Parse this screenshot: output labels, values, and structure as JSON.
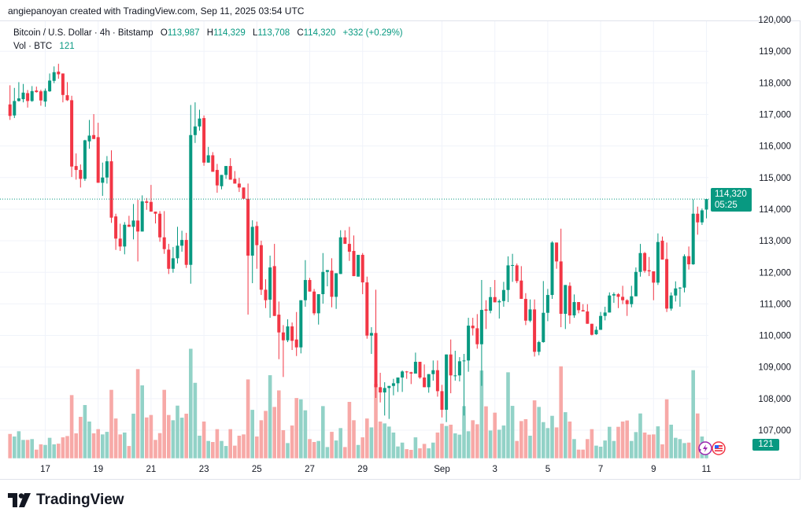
{
  "credit": "angiepanoyan created with TradingView.com, Sep 11, 2025 03:54 UTC",
  "legend": {
    "symbol": "Bitcoin / U.S. Dollar · 4h · Bitstamp",
    "o_label": "O",
    "o": "113,987",
    "h_label": "H",
    "h": "114,329",
    "l_label": "L",
    "l": "113,708",
    "c_label": "C",
    "c": "114,320",
    "change": "+332 (+0.29%)",
    "vol_label": "Vol · BTC",
    "vol": "121"
  },
  "price_badge": {
    "price": "114,320",
    "countdown": "05:25"
  },
  "volume_badge": "121",
  "logo_text": "TradingView",
  "colors": {
    "up": "#089981",
    "down": "#f23645",
    "vol_up": "#92d2c7",
    "vol_down": "#f7a9a7",
    "grid": "#f0f3fa"
  },
  "chart_data": {
    "type": "candlestick",
    "title": "Bitcoin / U.S. Dollar · 4h · Bitstamp",
    "interval": "4h",
    "ylim": [
      106500,
      120000
    ],
    "y_ticks": [
      "120,000",
      "119,000",
      "118,000",
      "117,000",
      "116,000",
      "115,000",
      "114,000",
      "113,000",
      "112,000",
      "111,000",
      "110,000",
      "109,000",
      "108,000",
      "107,000"
    ],
    "y_tick_values": [
      120000,
      119000,
      118000,
      117000,
      116000,
      115000,
      114000,
      113000,
      112000,
      111000,
      110000,
      109000,
      108000,
      107000
    ],
    "x_ticks": [
      {
        "label": "17",
        "index": 8
      },
      {
        "label": "19",
        "index": 20
      },
      {
        "label": "21",
        "index": 32
      },
      {
        "label": "23",
        "index": 44
      },
      {
        "label": "25",
        "index": 56
      },
      {
        "label": "27",
        "index": 68
      },
      {
        "label": "29",
        "index": 80
      },
      {
        "label": "Sep",
        "index": 98
      },
      {
        "label": "3",
        "index": 110
      },
      {
        "label": "5",
        "index": 122
      },
      {
        "label": "7",
        "index": 134
      },
      {
        "label": "9",
        "index": 146
      },
      {
        "label": "11",
        "index": 158
      }
    ],
    "last_price": 114320,
    "ohlc": [
      [
        117317,
        117923,
        116827,
        116952
      ],
      [
        116968,
        117840,
        116886,
        117425
      ],
      [
        117425,
        118023,
        117408,
        117508
      ],
      [
        117483,
        117965,
        117383,
        117691
      ],
      [
        117674,
        117774,
        117217,
        117425
      ],
      [
        117425,
        117898,
        117400,
        117740
      ],
      [
        117757,
        117881,
        117690,
        117707
      ],
      [
        117732,
        117782,
        117276,
        117442
      ],
      [
        117408,
        117823,
        117242,
        117749
      ],
      [
        117732,
        118297,
        117715,
        118072
      ],
      [
        118064,
        118521,
        117989,
        118338
      ],
      [
        118354,
        118604,
        118130,
        118272
      ],
      [
        118297,
        118297,
        117383,
        117616
      ],
      [
        117608,
        118023,
        117425,
        117450
      ],
      [
        117450,
        117591,
        115018,
        115350
      ],
      [
        115366,
        115765,
        114935,
        115242
      ],
      [
        115242,
        115416,
        114686,
        114960
      ],
      [
        114960,
        116197,
        114894,
        116180
      ],
      [
        116147,
        116827,
        115914,
        116330
      ],
      [
        116346,
        117010,
        116222,
        116222
      ],
      [
        116280,
        116736,
        114836,
        114836
      ],
      [
        114836,
        115475,
        114420,
        115002
      ],
      [
        115002,
        115682,
        114810,
        115516
      ],
      [
        115516,
        115865,
        113566,
        113731
      ],
      [
        113770,
        113856,
        112710,
        113068
      ],
      [
        113068,
        113540,
        112677,
        112818
      ],
      [
        112818,
        113590,
        112570,
        113507
      ],
      [
        113507,
        113790,
        113441,
        113441
      ],
      [
        113441,
        114163,
        113043,
        113640
      ],
      [
        113640,
        114296,
        112345,
        113292
      ],
      [
        113292,
        114437,
        113292,
        114246
      ],
      [
        114246,
        114353,
        113980,
        114200
      ],
      [
        114230,
        114768,
        113922,
        113922
      ],
      [
        113922,
        113922,
        113548,
        113856
      ],
      [
        113856,
        113938,
        112967,
        113108
      ],
      [
        113108,
        113938,
        112586,
        112735
      ],
      [
        112718,
        112901,
        111946,
        112112
      ],
      [
        112112,
        112801,
        111988,
        112445
      ],
      [
        112445,
        113440,
        112279,
        112843
      ],
      [
        112843,
        113316,
        112652,
        113025
      ],
      [
        113025,
        113250,
        112138,
        112237
      ],
      [
        112237,
        117300,
        111639,
        116346
      ],
      [
        116346,
        117383,
        116096,
        116620
      ],
      [
        116620,
        117150,
        116487,
        116869
      ],
      [
        116885,
        116968,
        115374,
        115474
      ],
      [
        115474,
        115972,
        115474,
        115706
      ],
      [
        115706,
        115806,
        115184,
        115184
      ],
      [
        115242,
        115433,
        114520,
        114752
      ],
      [
        114727,
        115084,
        114627,
        115084
      ],
      [
        115084,
        115366,
        114959,
        115366
      ],
      [
        115366,
        115615,
        114934,
        114934
      ],
      [
        114959,
        115208,
        114810,
        114810
      ],
      [
        114810,
        114993,
        114544,
        114686
      ],
      [
        114686,
        114686,
        114329,
        114329
      ],
      [
        114329,
        114810,
        110660,
        112528
      ],
      [
        112528,
        113648,
        111656,
        113440
      ],
      [
        113466,
        113607,
        112112,
        112860
      ],
      [
        112860,
        113001,
        111283,
        111449
      ],
      [
        111449,
        111780,
        110868,
        111116
      ],
      [
        111133,
        112528,
        110560,
        112154
      ],
      [
        112196,
        112901,
        110618,
        110618
      ],
      [
        110660,
        111075,
        109249,
        110096
      ],
      [
        110096,
        110328,
        108685,
        109847
      ],
      [
        109847,
        110511,
        109789,
        110287
      ],
      [
        110287,
        110411,
        109540,
        109830
      ],
      [
        109872,
        110743,
        109349,
        109623
      ],
      [
        109623,
        111116,
        109432,
        111116
      ],
      [
        111116,
        112386,
        110909,
        111756
      ],
      [
        111756,
        111822,
        111391,
        111391
      ],
      [
        111391,
        111473,
        110643,
        110702
      ],
      [
        110702,
        111308,
        110345,
        111308
      ],
      [
        111308,
        112610,
        111008,
        112013
      ],
      [
        112013,
        112071,
        111556,
        112071
      ],
      [
        112054,
        112444,
        110892,
        111224
      ],
      [
        111224,
        111971,
        110842,
        111971
      ],
      [
        111947,
        113332,
        111947,
        113108
      ],
      [
        113108,
        113332,
        112901,
        112901
      ],
      [
        112901,
        113440,
        112361,
        112652
      ],
      [
        112677,
        113167,
        111880,
        111880
      ],
      [
        111864,
        112553,
        111864,
        112553
      ],
      [
        112553,
        112610,
        111308,
        111681
      ],
      [
        111681,
        111864,
        109897,
        109996
      ],
      [
        109996,
        110262,
        109415,
        110079
      ],
      [
        110079,
        111449,
        108021,
        108361
      ],
      [
        108361,
        108818,
        107880,
        108196
      ],
      [
        108196,
        108519,
        107465,
        108336
      ],
      [
        108336,
        108402,
        107357,
        108402
      ],
      [
        108402,
        108627,
        108104,
        108486
      ],
      [
        108486,
        108668,
        108212,
        108668
      ],
      [
        108668,
        108893,
        108212,
        108859
      ],
      [
        108859,
        108875,
        108627,
        108835
      ],
      [
        108835,
        108850,
        108461,
        108793
      ],
      [
        108793,
        109457,
        108793,
        109166
      ],
      [
        109166,
        109166,
        108627,
        108668
      ],
      [
        108668,
        109083,
        108361,
        108361
      ],
      [
        108361,
        108776,
        108187,
        108776
      ],
      [
        108776,
        109208,
        108569,
        108900
      ],
      [
        108900,
        109208,
        108062,
        108236
      ],
      [
        108236,
        108436,
        107406,
        107647
      ],
      [
        107647,
        109398,
        107257,
        109398
      ],
      [
        109398,
        109872,
        108170,
        108735
      ],
      [
        108735,
        109515,
        108569,
        108735
      ],
      [
        108735,
        109315,
        108545,
        109183
      ],
      [
        109183,
        109415,
        107465,
        109208
      ],
      [
        109208,
        110560,
        108851,
        110311
      ],
      [
        110311,
        110560,
        110000,
        110228
      ],
      [
        110228,
        110677,
        109581,
        109722
      ],
      [
        109722,
        111756,
        108403,
        110809
      ],
      [
        110825,
        111116,
        110204,
        110784
      ],
      [
        110784,
        111532,
        110702,
        111216
      ],
      [
        111216,
        111756,
        111050,
        111050
      ],
      [
        111050,
        111141,
        110536,
        111091
      ],
      [
        111091,
        111698,
        110909,
        111440
      ],
      [
        111440,
        112503,
        111058,
        112220
      ],
      [
        112220,
        112586,
        111698,
        112230
      ],
      [
        112220,
        112278,
        111656,
        111722
      ],
      [
        111739,
        112196,
        111158,
        111158
      ],
      [
        111158,
        111340,
        110328,
        110469
      ],
      [
        110469,
        111141,
        110420,
        110826
      ],
      [
        110826,
        111141,
        109332,
        109482
      ],
      [
        109482,
        109830,
        109374,
        109789
      ],
      [
        109789,
        111723,
        109772,
        110718
      ],
      [
        110718,
        111474,
        110453,
        111282
      ],
      [
        111282,
        112984,
        111158,
        112943
      ],
      [
        112943,
        112943,
        112113,
        112345
      ],
      [
        112345,
        113382,
        110262,
        110685
      ],
      [
        110685,
        111598,
        110204,
        111598
      ],
      [
        111573,
        111681,
        110370,
        110635
      ],
      [
        110635,
        111299,
        110560,
        111058
      ],
      [
        111058,
        111058,
        110702,
        110801
      ],
      [
        110801,
        110992,
        110760,
        110760
      ],
      [
        110760,
        110992,
        110370,
        110370
      ],
      [
        110370,
        110370,
        110000,
        110021
      ],
      [
        110038,
        110286,
        110021,
        110179
      ],
      [
        110179,
        110743,
        110179,
        110619
      ],
      [
        110619,
        110909,
        110478,
        110727
      ],
      [
        110727,
        111365,
        110727,
        111266
      ],
      [
        111266,
        111365,
        111033,
        111307
      ],
      [
        111307,
        111340,
        110868,
        111224
      ],
      [
        111224,
        111573,
        110992,
        111116
      ],
      [
        111116,
        111148,
        110619,
        110992
      ],
      [
        110992,
        111573,
        110892,
        111241
      ],
      [
        111241,
        112154,
        111241,
        112013
      ],
      [
        112013,
        112901,
        111863,
        112610
      ],
      [
        112610,
        112644,
        111988,
        112046
      ],
      [
        112064,
        112486,
        111880,
        112031
      ],
      [
        112031,
        112031,
        111117,
        111673
      ],
      [
        111673,
        113233,
        111600,
        112959
      ],
      [
        113001,
        113133,
        112403,
        112403
      ],
      [
        112420,
        112943,
        110743,
        110851
      ],
      [
        110851,
        111364,
        110785,
        111266
      ],
      [
        111266,
        111714,
        111075,
        111490
      ],
      [
        111490,
        111532,
        110909,
        111515
      ],
      [
        111515,
        112570,
        111365,
        112511
      ],
      [
        112511,
        112818,
        112088,
        112254
      ],
      [
        112254,
        114312,
        112237,
        113856
      ],
      [
        113856,
        114080,
        113192,
        113582
      ],
      [
        113582,
        114021,
        113500,
        113963
      ],
      [
        113987,
        114329,
        113708,
        114320
      ]
    ],
    "volume": [
      208,
      186,
      231,
      157,
      157,
      164,
      74,
      119,
      114,
      175,
      119,
      125,
      179,
      190,
      540,
      213,
      354,
      455,
      314,
      213,
      249,
      204,
      226,
      585,
      340,
      204,
      220,
      105,
      381,
      762,
      623,
      349,
      370,
      157,
      215,
      585,
      370,
      325,
      450,
      347,
      381,
      936,
      645,
      193,
      314,
      148,
      139,
      249,
      148,
      105,
      249,
      108,
      193,
      204,
      674,
      414,
      186,
      325,
      405,
      710,
      439,
      580,
      240,
      130,
      280,
      515,
      504,
      410,
      164,
      139,
      148,
      446,
      96,
      226,
      152,
      258,
      96,
      482,
      325,
      114,
      179,
      340,
      264,
      636,
      314,
      298,
      271,
      220,
      101,
      134,
      78,
      72,
      179,
      85,
      123,
      85,
      134,
      220,
      296,
      276,
      287,
      213,
      202,
      446,
      231,
      325,
      291,
      750,
      444,
      237,
      390,
      244,
      280,
      735,
      448,
      148,
      318,
      334,
      193,
      495,
      439,
      309,
      258,
      363,
      264,
      786,
      394,
      314,
      164,
      74,
      74,
      164,
      249,
      108,
      99,
      152,
      269,
      148,
      269,
      314,
      323,
      148,
      224,
      383,
      220,
      202,
      204,
      273,
      119,
      504,
      287,
      175,
      164,
      130,
      134,
      753,
      383,
      186,
      121
    ]
  }
}
